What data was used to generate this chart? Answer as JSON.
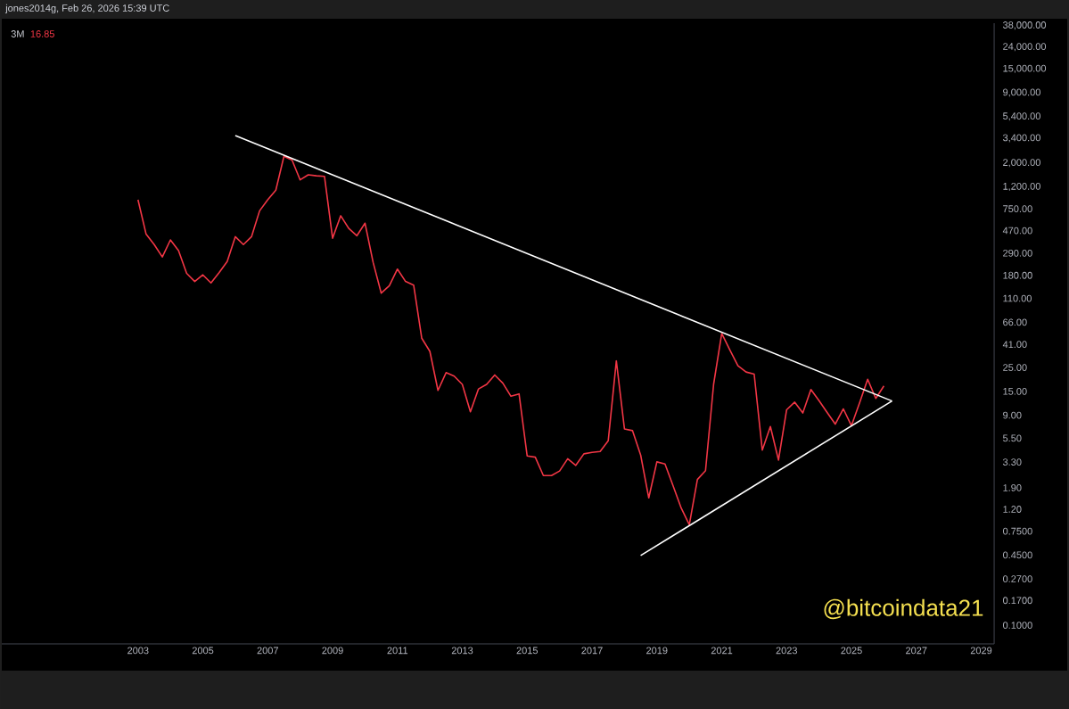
{
  "chart_data": {
    "type": "line",
    "title": "3M",
    "subtitle": "16.85",
    "annotations": [
      "jones2014g, Feb 26, 2026 15:39 UTC",
      "@bitcoindata21"
    ],
    "log": "y",
    "x": [
      2003,
      2003.25,
      2003.5,
      2003.75,
      2004,
      2004.25,
      2004.5,
      2004.75,
      2005,
      2005.25,
      2005.5,
      2005.75,
      2006,
      2006.25,
      2006.5,
      2006.75,
      2007,
      2007.25,
      2007.5,
      2007.75,
      2008,
      2008.25,
      2008.5,
      2008.75,
      2009,
      2009.25,
      2009.5,
      2009.75,
      2010,
      2010.25,
      2010.5,
      2010.75,
      2011,
      2011.25,
      2011.5,
      2011.75,
      2012,
      2012.25,
      2012.5,
      2012.75,
      2013,
      2013.25,
      2013.5,
      2013.75,
      2014,
      2014.25,
      2014.5,
      2014.75,
      2015,
      2015.25,
      2015.5,
      2015.75,
      2016,
      2016.25,
      2016.5,
      2016.75,
      2017,
      2017.25,
      2017.5,
      2017.75,
      2018,
      2018.25,
      2018.5,
      2018.75,
      2019,
      2019.25,
      2019.5,
      2019.75,
      2020,
      2020.25,
      2020.5,
      2020.75,
      2021,
      2021.25,
      2021.5,
      2021.75,
      2022,
      2022.25,
      2022.5,
      2022.75,
      2023,
      2023.25,
      2023.5,
      2023.75,
      2024,
      2024.25,
      2024.5,
      2024.75,
      2025,
      2025.25,
      2025.5,
      2025.75,
      2026
    ],
    "series": [
      {
        "color": "#f23645",
        "values": [
          910,
          435,
          348,
          267,
          385,
          306,
          188,
          158,
          182,
          153,
          191,
          242,
          412,
          348,
          412,
          718,
          908,
          1117,
          2307,
          2128,
          1393,
          1552,
          1521,
          1503,
          399,
          646,
          492,
          421,
          551,
          238,
          123,
          144,
          206,
          158,
          146,
          46.8,
          35.3,
          15.3,
          22.4,
          20.8,
          17.4,
          9.68,
          15.8,
          17.4,
          21.3,
          17.9,
          13.5,
          14.2,
          3.76,
          3.66,
          2.47,
          2.47,
          2.72,
          3.54,
          3.07,
          3.93,
          4.06,
          4.13,
          5.21,
          28.8,
          6.71,
          6.46,
          3.83,
          1.53,
          3.31,
          3.17,
          1.98,
          1.23,
          0.86,
          2.27,
          2.74,
          17.5,
          51.8,
          36.4,
          25.9,
          22.7,
          21.7,
          4.26,
          7.06,
          3.44,
          10.1,
          11.9,
          9.43,
          15.6,
          12.3,
          9.55,
          7.43,
          10.3,
          7.19,
          11.7,
          19.4,
          12.9,
          16.85
        ]
      },
      {
        "color": "#ffffff",
        "x": [
          2006,
          2026.25
        ],
        "values": [
          3600,
          12.2
        ]
      },
      {
        "color": "#ffffff",
        "x": [
          2018.5,
          2026.25
        ],
        "values": [
          0.445,
          12.2
        ]
      }
    ],
    "xlim": [
      1998.8,
      2029.4
    ],
    "ylim": [
      0.067,
      40000
    ],
    "xticks": [
      2003,
      2005,
      2007,
      2009,
      2011,
      2013,
      2015,
      2017,
      2019,
      2021,
      2023,
      2025,
      2027,
      2029
    ],
    "yticks": [
      {
        "value": 0.1,
        "label": "0.1000"
      },
      {
        "value": 0.17,
        "label": "0.1700"
      },
      {
        "value": 0.27,
        "label": "0.2700"
      },
      {
        "value": 0.45,
        "label": "0.4500"
      },
      {
        "value": 0.75,
        "label": "0.7500"
      },
      {
        "value": 1.2,
        "label": "1.20"
      },
      {
        "value": 1.9,
        "label": "1.90"
      },
      {
        "value": 3.3,
        "label": "3.30"
      },
      {
        "value": 5.5,
        "label": "5.50"
      },
      {
        "value": 9,
        "label": "9.00"
      },
      {
        "value": 15,
        "label": "15.00"
      },
      {
        "value": 25,
        "label": "25.00"
      },
      {
        "value": 41,
        "label": "41.00"
      },
      {
        "value": 66,
        "label": "66.00"
      },
      {
        "value": 110,
        "label": "110.00"
      },
      {
        "value": 180,
        "label": "180.00"
      },
      {
        "value": 290,
        "label": "290.00"
      },
      {
        "value": 470,
        "label": "470.00"
      },
      {
        "value": 750,
        "label": "750.00"
      },
      {
        "value": 1200,
        "label": "1,200.00"
      },
      {
        "value": 2000,
        "label": "2,000.00"
      },
      {
        "value": 3400,
        "label": "3,400.00"
      },
      {
        "value": 5400,
        "label": "5,400.00"
      },
      {
        "value": 9000,
        "label": "9,000.00"
      },
      {
        "value": 15000,
        "label": "15,000.00"
      },
      {
        "value": 24000,
        "label": "24,000.00"
      },
      {
        "value": 38000,
        "label": "38,000.00"
      }
    ]
  }
}
